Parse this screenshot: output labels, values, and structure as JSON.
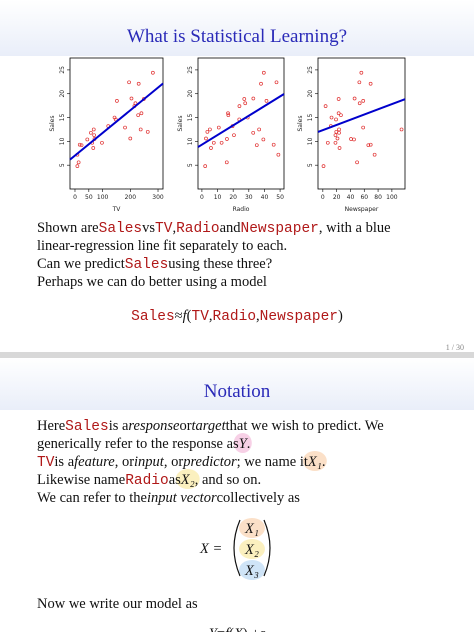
{
  "chart_data": [
    {
      "type": "scatter",
      "x_label": "TV",
      "y_label": "Sales",
      "xlim": [
        -18,
        318
      ],
      "ylim": [
        0,
        27.5
      ],
      "xticks": [
        0,
        50,
        100,
        200,
        300
      ],
      "yticks": [
        5,
        10,
        15,
        20,
        25
      ],
      "color": "#e03030",
      "x": [
        230.1,
        44.5,
        17.2,
        151.5,
        180.8,
        8.7,
        57.5,
        120.2,
        8.6,
        199.8,
        66.1,
        214.7,
        23.8,
        97.5,
        204.1,
        195.4,
        67.8,
        281.4,
        69.2,
        147.3,
        218.4,
        237.4,
        13.2,
        228.3,
        62.3,
        262.9,
        142.9,
        240.1,
        248.8,
        70.6
      ],
      "y": [
        22.1,
        10.4,
        9.3,
        18.5,
        12.9,
        7.2,
        11.8,
        13.2,
        4.8,
        10.6,
        8.6,
        17.4,
        9.2,
        9.7,
        19,
        22.4,
        12.5,
        24.4,
        11.3,
        14.6,
        18,
        12.5,
        5.6,
        15.5,
        9.7,
        12,
        15,
        15.9,
        18.9,
        10.5
      ],
      "line": {
        "color": "#0000cc",
        "x": [
          -18,
          318
        ],
        "y": [
          6.17,
          22.14
        ]
      }
    },
    {
      "type": "scatter",
      "x_label": "Radio",
      "y_label": "Sales",
      "xlim": [
        -2.5,
        52.5
      ],
      "ylim": [
        0,
        27.5
      ],
      "xticks": [
        0,
        10,
        20,
        30,
        40,
        50
      ],
      "yticks": [
        5,
        10,
        15,
        20,
        25
      ],
      "color": "#e03030",
      "x": [
        37.8,
        39.3,
        45.9,
        41.3,
        10.8,
        48.9,
        32.8,
        19.6,
        2.1,
        2.6,
        5.8,
        24,
        35.1,
        7.6,
        32.9,
        47.7,
        36.6,
        39.6,
        20.5,
        23.9,
        27.7,
        5.1,
        15.9,
        16.9,
        12.6,
        3.5,
        29.3,
        16.7,
        27.1,
        16
      ],
      "y": [
        22.1,
        10.4,
        9.3,
        18.5,
        12.9,
        7.2,
        11.8,
        13.2,
        4.8,
        10.6,
        8.6,
        17.4,
        9.2,
        9.7,
        19,
        22.4,
        12.5,
        24.4,
        11.3,
        14.6,
        18,
        12.5,
        5.6,
        15.5,
        9.7,
        12,
        15,
        15.9,
        18.9,
        10.5
      ],
      "line": {
        "color": "#0000cc",
        "x": [
          -2.5,
          52.5
        ],
        "y": [
          8.8,
          19.94
        ]
      }
    },
    {
      "type": "scatter",
      "x_label": "Newspaper",
      "y_label": "Sales",
      "xlim": [
        -7,
        119
      ],
      "ylim": [
        0,
        27.5
      ],
      "xticks": [
        0,
        20,
        40,
        60,
        80,
        100
      ],
      "yticks": [
        5,
        10,
        15,
        20,
        25
      ],
      "color": "#e03030",
      "x": [
        69.2,
        45.1,
        69.3,
        58.5,
        58.4,
        75,
        23.5,
        11.6,
        1,
        21.2,
        24.2,
        4,
        65.9,
        7.2,
        46,
        52.9,
        114,
        55.8,
        18.3,
        19.1,
        53.4,
        23.5,
        49.6,
        26.2,
        18.3,
        19.5,
        12.6,
        22.9,
        22.9,
        40.8
      ],
      "y": [
        22.1,
        10.4,
        9.3,
        18.5,
        12.9,
        7.2,
        11.8,
        13.2,
        4.8,
        10.6,
        8.6,
        17.4,
        9.2,
        9.7,
        19,
        22.4,
        12.5,
        24.4,
        11.3,
        14.6,
        18,
        12.5,
        5.6,
        15.5,
        9.7,
        12,
        15,
        15.9,
        18.9,
        10.5
      ],
      "line": {
        "color": "#0000cc",
        "x": [
          -7,
          119
        ],
        "y": [
          11.97,
          18.86
        ]
      }
    }
  ],
  "slides": [
    {
      "title": "What is Statistical Learning?",
      "lines": [
        [
          {
            "text": "Shown are "
          },
          {
            "text": "Sales",
            "style": "code"
          },
          {
            "text": " vs "
          },
          {
            "text": "TV",
            "style": "code"
          },
          {
            "text": ", "
          },
          {
            "text": "Radio",
            "style": "code"
          },
          {
            "text": " and "
          },
          {
            "text": "Newspaper",
            "style": "code"
          },
          {
            "text": ", with a blue"
          }
        ],
        [
          {
            "text": "linear-regression line fit separately to each."
          }
        ],
        [
          {
            "text": "Can we predict "
          },
          {
            "text": "Sales",
            "style": "code"
          },
          {
            "text": " using these three?"
          }
        ],
        [
          {
            "text": "Perhaps we can do better using a model"
          }
        ]
      ],
      "formula": [
        {
          "text": "Sales",
          "style": "code"
        },
        {
          "text": " ≈ "
        },
        {
          "text": "f",
          "style": "math"
        },
        {
          "text": "("
        },
        {
          "text": "TV",
          "style": "code"
        },
        {
          "text": ","
        },
        {
          "text": "Radio",
          "style": "code"
        },
        {
          "text": ","
        },
        {
          "text": "Newspaper",
          "style": "code"
        },
        {
          "text": ")"
        }
      ],
      "page_number": "1 / 30"
    },
    {
      "title": "Notation",
      "lines": [
        [
          {
            "text": "Here "
          },
          {
            "text": "Sales",
            "style": "code"
          },
          {
            "text": " is a "
          },
          {
            "text": "response",
            "style": "italic"
          },
          {
            "text": " or "
          },
          {
            "text": "target",
            "style": "italic"
          },
          {
            "text": " that we wish to predict. We"
          }
        ],
        [
          {
            "text": "generically refer to the response as "
          },
          {
            "text": "Y",
            "style": "math",
            "highlight": "#f7d0e6"
          },
          {
            "text": "."
          }
        ],
        [
          {
            "text": "TV",
            "style": "code"
          },
          {
            "text": " is a "
          },
          {
            "text": "feature",
            "style": "italic"
          },
          {
            "text": ", or "
          },
          {
            "text": "input",
            "style": "italic"
          },
          {
            "text": ", or "
          },
          {
            "text": "predictor",
            "style": "italic"
          },
          {
            "text": "; we name it "
          },
          {
            "text": "X₁",
            "style": "math",
            "highlight": "#fbe0c8"
          },
          {
            "text": "."
          }
        ],
        [
          {
            "text": "Likewise name "
          },
          {
            "text": "Radio",
            "style": "code"
          },
          {
            "text": " as "
          },
          {
            "text": "X₂",
            "style": "math",
            "highlight": "#fbf0bf"
          },
          {
            "text": ", and so on."
          }
        ],
        [
          {
            "text": "We can refer to the "
          },
          {
            "text": "input vector",
            "style": "italic"
          },
          {
            "text": " collectively as"
          }
        ]
      ],
      "vector": {
        "lhs": "X =",
        "entries": [
          {
            "text": "X₁",
            "highlight": "#fbe0c8"
          },
          {
            "text": "X₂",
            "highlight": "#fbf0bf"
          },
          {
            "text": "X₃",
            "highlight": "#cfe4f7"
          }
        ]
      },
      "after": [
        [
          {
            "text": "Now we write our model as"
          }
        ]
      ],
      "equation": [
        {
          "text": "Y",
          "style": "math"
        },
        {
          "text": " = "
        },
        {
          "text": "f",
          "style": "math"
        },
        {
          "text": "("
        },
        {
          "text": "X",
          "style": "math"
        },
        {
          "text": ") + "
        },
        {
          "text": "ε",
          "style": "math"
        }
      ]
    }
  ]
}
